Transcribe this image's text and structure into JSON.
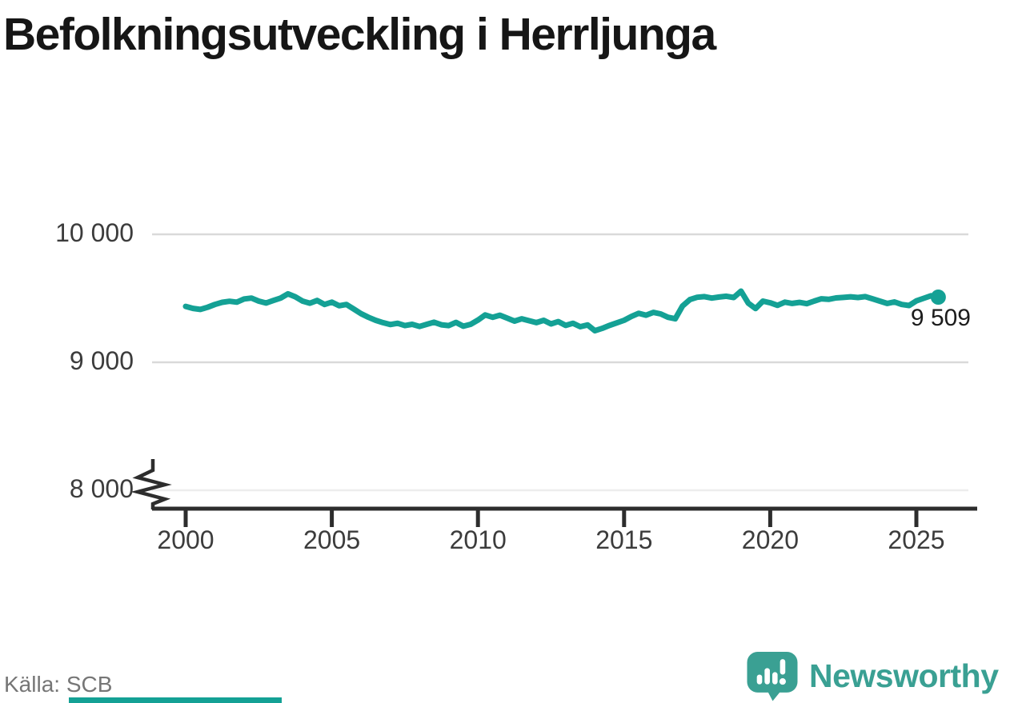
{
  "header": {
    "title": "Befolkningsutveckling i Herrljunga"
  },
  "chart_data": {
    "type": "line",
    "title": "Befolkningsutveckling i Herrljunga",
    "xlabel": "",
    "ylabel": "",
    "x_ticks": [
      {
        "value": 2000,
        "label": "2000"
      },
      {
        "value": 2005,
        "label": "2005"
      },
      {
        "value": 2010,
        "label": "2010"
      },
      {
        "value": 2015,
        "label": "2015"
      },
      {
        "value": 2020,
        "label": "2020"
      },
      {
        "value": 2025,
        "label": "2025"
      }
    ],
    "y_ticks": [
      {
        "value": 10000,
        "label": "10 000",
        "muted": false
      },
      {
        "value": 9000,
        "label": "9 000",
        "muted": false
      },
      {
        "value": 8000,
        "label": "8 000",
        "muted": true
      }
    ],
    "xlim": [
      1998.9,
      2027.1
    ],
    "ylim": [
      7870,
      10060
    ],
    "y_axis_break": true,
    "grid": "horizontal",
    "line_color": "#14a195",
    "end_label": "9 509",
    "end_value": 9509,
    "series": [
      {
        "name": "Befolkning",
        "points": [
          [
            2000.0,
            9437
          ],
          [
            2000.25,
            9421
          ],
          [
            2000.5,
            9413
          ],
          [
            2000.75,
            9430
          ],
          [
            2001.0,
            9452
          ],
          [
            2001.25,
            9469
          ],
          [
            2001.5,
            9477
          ],
          [
            2001.75,
            9470
          ],
          [
            2002.0,
            9495
          ],
          [
            2002.25,
            9502
          ],
          [
            2002.5,
            9478
          ],
          [
            2002.75,
            9463
          ],
          [
            2003.0,
            9483
          ],
          [
            2003.25,
            9502
          ],
          [
            2003.5,
            9535
          ],
          [
            2003.75,
            9512
          ],
          [
            2004.0,
            9478
          ],
          [
            2004.25,
            9462
          ],
          [
            2004.5,
            9483
          ],
          [
            2004.75,
            9452
          ],
          [
            2005.0,
            9470
          ],
          [
            2005.25,
            9442
          ],
          [
            2005.5,
            9452
          ],
          [
            2005.75,
            9416
          ],
          [
            2006.0,
            9380
          ],
          [
            2006.25,
            9352
          ],
          [
            2006.5,
            9328
          ],
          [
            2006.75,
            9310
          ],
          [
            2007.0,
            9295
          ],
          [
            2007.25,
            9305
          ],
          [
            2007.5,
            9287
          ],
          [
            2007.75,
            9297
          ],
          [
            2008.0,
            9280
          ],
          [
            2008.25,
            9297
          ],
          [
            2008.5,
            9313
          ],
          [
            2008.75,
            9293
          ],
          [
            2009.0,
            9287
          ],
          [
            2009.25,
            9312
          ],
          [
            2009.5,
            9282
          ],
          [
            2009.75,
            9297
          ],
          [
            2010.0,
            9330
          ],
          [
            2010.25,
            9370
          ],
          [
            2010.5,
            9352
          ],
          [
            2010.75,
            9368
          ],
          [
            2011.0,
            9345
          ],
          [
            2011.25,
            9322
          ],
          [
            2011.5,
            9340
          ],
          [
            2011.75,
            9325
          ],
          [
            2012.0,
            9310
          ],
          [
            2012.25,
            9328
          ],
          [
            2012.5,
            9300
          ],
          [
            2012.75,
            9318
          ],
          [
            2013.0,
            9288
          ],
          [
            2013.25,
            9305
          ],
          [
            2013.5,
            9278
          ],
          [
            2013.75,
            9292
          ],
          [
            2014.0,
            9247
          ],
          [
            2014.25,
            9265
          ],
          [
            2014.5,
            9288
          ],
          [
            2014.75,
            9308
          ],
          [
            2015.0,
            9328
          ],
          [
            2015.25,
            9358
          ],
          [
            2015.5,
            9383
          ],
          [
            2015.75,
            9368
          ],
          [
            2016.0,
            9390
          ],
          [
            2016.25,
            9378
          ],
          [
            2016.5,
            9352
          ],
          [
            2016.75,
            9340
          ],
          [
            2017.0,
            9440
          ],
          [
            2017.25,
            9490
          ],
          [
            2017.5,
            9508
          ],
          [
            2017.75,
            9513
          ],
          [
            2018.0,
            9502
          ],
          [
            2018.25,
            9510
          ],
          [
            2018.5,
            9516
          ],
          [
            2018.75,
            9506
          ],
          [
            2019.0,
            9556
          ],
          [
            2019.25,
            9462
          ],
          [
            2019.5,
            9420
          ],
          [
            2019.75,
            9478
          ],
          [
            2020.0,
            9465
          ],
          [
            2020.25,
            9445
          ],
          [
            2020.5,
            9470
          ],
          [
            2020.75,
            9460
          ],
          [
            2021.0,
            9468
          ],
          [
            2021.25,
            9458
          ],
          [
            2021.5,
            9478
          ],
          [
            2021.75,
            9496
          ],
          [
            2022.0,
            9492
          ],
          [
            2022.25,
            9503
          ],
          [
            2022.5,
            9507
          ],
          [
            2022.75,
            9512
          ],
          [
            2023.0,
            9506
          ],
          [
            2023.25,
            9513
          ],
          [
            2023.5,
            9496
          ],
          [
            2023.75,
            9478
          ],
          [
            2024.0,
            9460
          ],
          [
            2024.25,
            9472
          ],
          [
            2024.5,
            9452
          ],
          [
            2024.75,
            9444
          ],
          [
            2025.0,
            9480
          ],
          [
            2025.25,
            9500
          ],
          [
            2025.5,
            9520
          ],
          [
            2025.75,
            9509
          ]
        ]
      }
    ]
  },
  "footer": {
    "source": "Källa: SCB",
    "brand": "Newsworthy"
  },
  "colors": {
    "line": "#14a195",
    "grid": "#d9d9d9",
    "grid_muted": "#ededed",
    "axis": "#2d2d2d",
    "axis_text": "#3c3c3c",
    "title_text": "#161616",
    "muted_text": "#767676",
    "brand": "#3aa093",
    "bottom_bar": "#14a195"
  }
}
